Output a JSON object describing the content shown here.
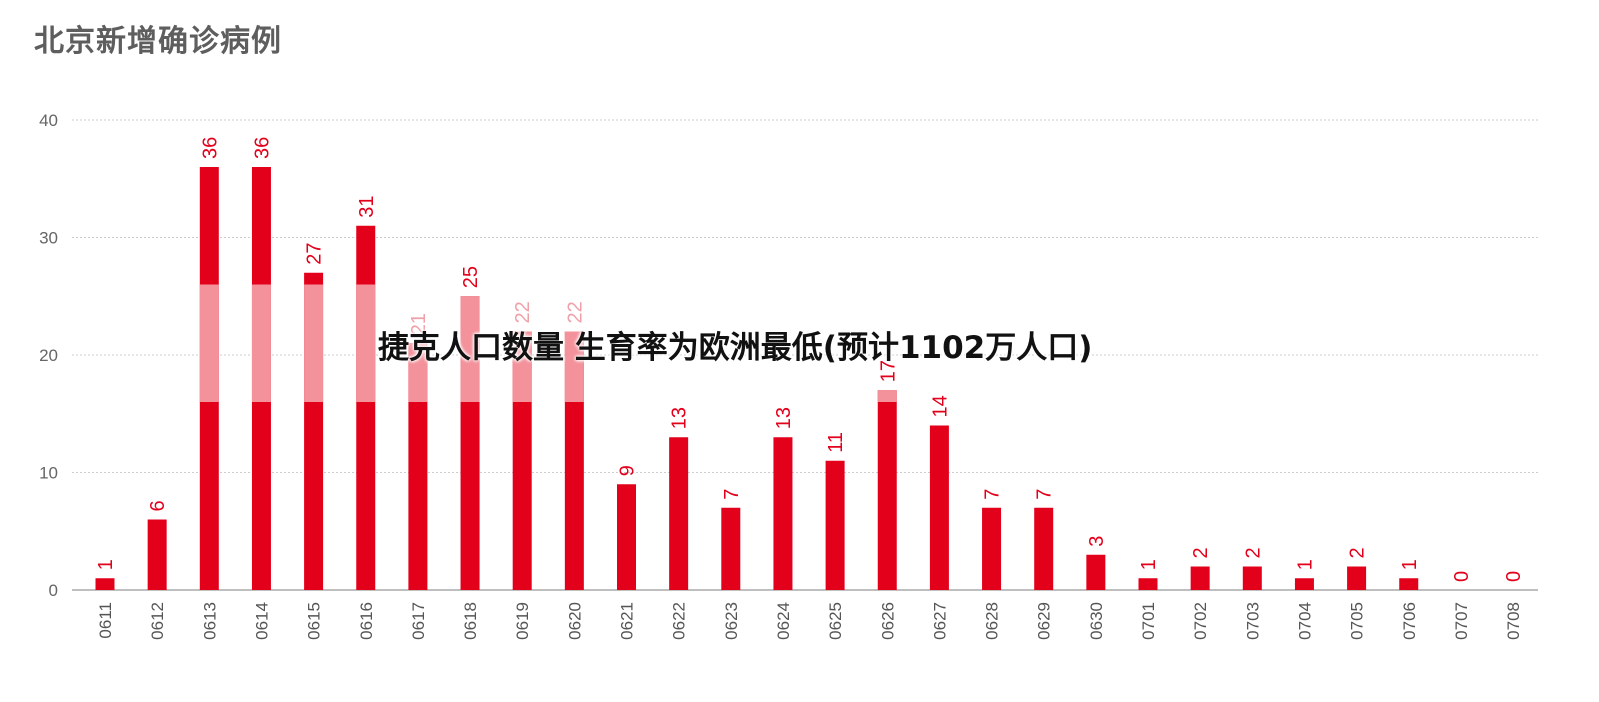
{
  "chart_data": {
    "type": "bar",
    "title": "北京新增确诊病例",
    "xlabel": "",
    "ylabel": "",
    "ylim": [
      0,
      40
    ],
    "yticks": [
      0,
      10,
      20,
      30,
      40
    ],
    "grid": true,
    "bar_color": "#e3001b",
    "overlay_color": "#f4a2aa",
    "categories": [
      "0611",
      "0612",
      "0613",
      "0614",
      "0615",
      "0616",
      "0617",
      "0618",
      "0619",
      "0620",
      "0621",
      "0622",
      "0623",
      "0624",
      "0625",
      "0626",
      "0627",
      "0628",
      "0629",
      "0630",
      "0701",
      "0702",
      "0703",
      "0704",
      "0705",
      "0706",
      "0707",
      "0708"
    ],
    "values": [
      1,
      6,
      36,
      36,
      27,
      31,
      21,
      25,
      22,
      22,
      9,
      13,
      7,
      13,
      11,
      17,
      14,
      7,
      7,
      3,
      1,
      2,
      2,
      1,
      2,
      1,
      0,
      0
    ]
  },
  "overlay": {
    "text": "捷克人口数量 生育率为欧洲最低(预计1102万人口)"
  }
}
